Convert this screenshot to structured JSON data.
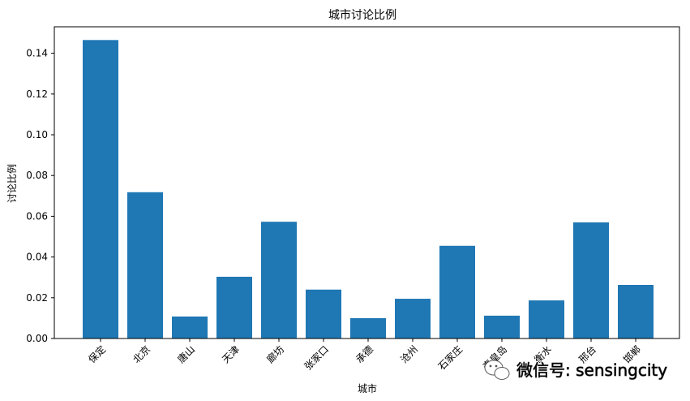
{
  "chart_data": {
    "type": "bar",
    "title": "城市讨论比例",
    "xlabel": "城市",
    "ylabel": "讨论比例",
    "categories": [
      "保定",
      "北京",
      "唐山",
      "天津",
      "廊坊",
      "张家口",
      "承德",
      "沧州",
      "石家庄",
      "秦皇岛",
      "衡水",
      "邢台",
      "邯郸"
    ],
    "values": [
      0.1465,
      0.0718,
      0.0108,
      0.0303,
      0.0573,
      0.024,
      0.01,
      0.0195,
      0.0455,
      0.0112,
      0.0187,
      0.057,
      0.0263
    ],
    "ylim": [
      0,
      0.153
    ],
    "yticks": [
      0.0,
      0.02,
      0.04,
      0.06,
      0.08,
      0.1,
      0.12,
      0.14
    ],
    "ytick_labels": [
      "0.00",
      "0.02",
      "0.04",
      "0.06",
      "0.08",
      "0.10",
      "0.12",
      "0.14"
    ],
    "bar_color": "#1f77b4",
    "grid": false,
    "legend": "none"
  },
  "watermark": {
    "icon": "wechat-icon",
    "text": "微信号: sensingcity"
  }
}
